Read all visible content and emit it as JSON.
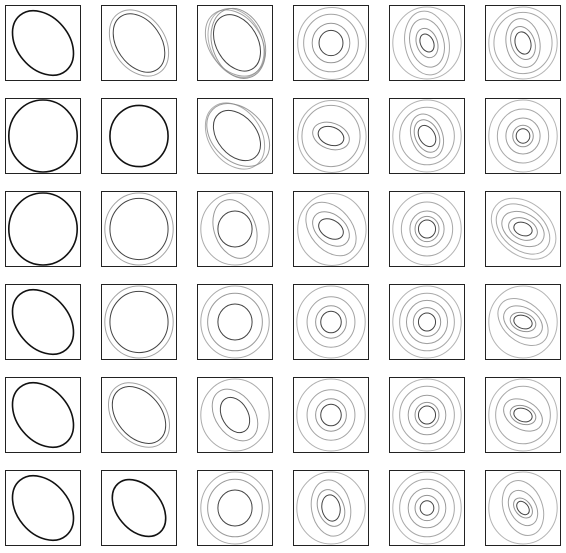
{
  "panels": [
    [
      [
        [
          0,
          1,
          40
        ]
      ],
      [
        [
          0,
          0.85,
          35
        ],
        [
          0,
          1,
          35
        ]
      ],
      [
        [
          0.3,
          0.8,
          30
        ],
        [
          0.5,
          1,
          20
        ],
        [
          0,
          1,
          35
        ],
        [
          0.15,
          1,
          25
        ]
      ],
      [
        [
          0,
          0.35,
          0
        ],
        [
          0,
          0.55,
          0
        ],
        [
          0,
          0.8,
          0
        ],
        [
          0.15,
          1,
          0
        ]
      ],
      [
        [
          0,
          0.25,
          25
        ],
        [
          0,
          0.4,
          20
        ],
        [
          0,
          0.65,
          15
        ],
        [
          0,
          0.85,
          10
        ],
        [
          0,
          1,
          0
        ]
      ],
      [
        [
          0,
          0.3,
          15
        ],
        [
          0,
          0.45,
          20
        ],
        [
          0,
          0.65,
          10
        ],
        [
          0,
          0.85,
          0
        ],
        [
          0,
          1,
          0
        ]
      ]
    ],
    [
      [
        [
          0,
          1,
          0
        ]
      ],
      [
        [
          0,
          0.85,
          0
        ]
      ],
      [
        [
          0.3,
          0.75,
          40
        ],
        [
          0.5,
          1,
          45
        ],
        [
          0,
          1,
          35
        ]
      ],
      [
        [
          0,
          0.35,
          70
        ],
        [
          0,
          0.5,
          70
        ],
        [
          0,
          0.85,
          0
        ],
        [
          0.15,
          1,
          0
        ]
      ],
      [
        [
          0,
          0.3,
          30
        ],
        [
          0,
          0.45,
          25
        ],
        [
          0,
          0.6,
          20
        ],
        [
          0,
          0.8,
          0
        ],
        [
          0,
          1,
          0
        ]
      ],
      [
        [
          0,
          0.2,
          0
        ],
        [
          0,
          0.3,
          0
        ],
        [
          0,
          0.5,
          0
        ],
        [
          0,
          0.75,
          0
        ],
        [
          0,
          1,
          0
        ]
      ]
    ],
    [
      [
        [
          0,
          1,
          0
        ]
      ],
      [
        [
          0,
          0.85,
          0
        ],
        [
          0,
          1,
          0
        ]
      ],
      [
        [
          0,
          0.5,
          0
        ],
        [
          0,
          0.8,
          20
        ],
        [
          0,
          1,
          0
        ]
      ],
      [
        [
          0,
          0.35,
          60
        ],
        [
          0,
          0.55,
          50
        ],
        [
          0,
          0.8,
          40
        ],
        [
          0.15,
          1,
          0
        ]
      ],
      [
        [
          0,
          0.25,
          0
        ],
        [
          0,
          0.35,
          0
        ],
        [
          0,
          0.5,
          0
        ],
        [
          0,
          0.75,
          0
        ],
        [
          0,
          1,
          0
        ]
      ],
      [
        [
          0,
          0.25,
          70
        ],
        [
          0,
          0.4,
          65
        ],
        [
          0,
          0.6,
          60
        ],
        [
          0,
          0.8,
          50
        ],
        [
          0.1,
          1,
          50
        ]
      ]
    ],
    [
      [
        [
          0,
          1,
          40
        ]
      ],
      [
        [
          0,
          0.85,
          0
        ],
        [
          0,
          1,
          0
        ]
      ],
      [
        [
          0,
          0.5,
          0
        ],
        [
          0,
          0.8,
          0
        ],
        [
          0,
          1,
          0
        ]
      ],
      [
        [
          0,
          0.3,
          0
        ],
        [
          0,
          0.45,
          0
        ],
        [
          0,
          0.7,
          0
        ],
        [
          0,
          1,
          0
        ]
      ],
      [
        [
          0,
          0.25,
          0
        ],
        [
          0,
          0.4,
          0
        ],
        [
          0,
          0.6,
          0
        ],
        [
          0,
          0.8,
          0
        ],
        [
          0,
          1,
          0
        ]
      ],
      [
        [
          0,
          0.25,
          70
        ],
        [
          0,
          0.35,
          70
        ],
        [
          0,
          0.55,
          60
        ],
        [
          0,
          0.75,
          50
        ],
        [
          0,
          1,
          0
        ]
      ]
    ],
    [
      [
        [
          0,
          1,
          40
        ]
      ],
      [
        [
          0,
          0.85,
          40
        ],
        [
          0,
          1,
          40
        ]
      ],
      [
        [
          0,
          0.5,
          30
        ],
        [
          0,
          0.75,
          35
        ],
        [
          0,
          1,
          0
        ]
      ],
      [
        [
          0,
          0.3,
          0
        ],
        [
          0,
          0.45,
          0
        ],
        [
          0,
          0.7,
          0
        ],
        [
          0,
          1,
          0
        ]
      ],
      [
        [
          0,
          0.25,
          0
        ],
        [
          0,
          0.35,
          0
        ],
        [
          0,
          0.55,
          0
        ],
        [
          0,
          0.8,
          0
        ],
        [
          0,
          1,
          0
        ]
      ],
      [
        [
          0,
          0.25,
          70
        ],
        [
          0,
          0.35,
          70
        ],
        [
          0,
          0.55,
          60
        ],
        [
          0,
          0.8,
          0
        ],
        [
          0,
          1,
          0
        ]
      ]
    ],
    [
      [
        [
          0,
          1,
          40
        ]
      ],
      [
        [
          0,
          0.85,
          40
        ]
      ],
      [
        [
          0,
          0.5,
          0
        ],
        [
          0,
          0.8,
          0
        ],
        [
          0,
          1,
          0
        ]
      ],
      [
        [
          0,
          0.35,
          10
        ],
        [
          0,
          0.5,
          20
        ],
        [
          0,
          0.75,
          10
        ],
        [
          0,
          1,
          0
        ]
      ],
      [
        [
          0,
          0.2,
          0
        ],
        [
          0,
          0.35,
          0
        ],
        [
          0,
          0.55,
          0
        ],
        [
          0,
          0.8,
          0
        ],
        [
          0,
          1,
          0
        ]
      ],
      [
        [
          0,
          0.2,
          40
        ],
        [
          0,
          0.3,
          40
        ],
        [
          0,
          0.5,
          30
        ],
        [
          0,
          0.75,
          20
        ],
        [
          0,
          1,
          0
        ]
      ]
    ]
  ]
}
